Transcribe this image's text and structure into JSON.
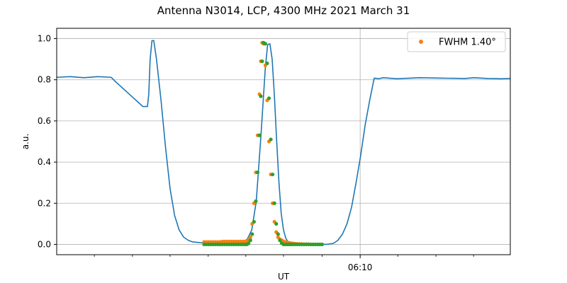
{
  "chart_data": {
    "type": "line",
    "title": "Antenna N3014, LCP, 4300 MHz 2021 March 31",
    "xlabel": "UT",
    "ylabel": "a.u.",
    "ylim": [
      -0.05,
      1.05
    ],
    "xlim": [
      0,
      100
    ],
    "y_ticks": [
      0.0,
      0.2,
      0.4,
      0.6,
      0.8,
      1.0
    ],
    "y_tick_labels": [
      "0.0",
      "0.2",
      "0.4",
      "0.6",
      "0.8",
      "1.0"
    ],
    "x_major_ticks": [
      {
        "x": 66.9,
        "label": "06:10"
      }
    ],
    "x_minor_ticks": [
      8.3,
      16.7,
      25.0,
      33.4,
      41.7,
      50.0,
      58.5,
      75.2,
      83.6,
      91.9
    ],
    "grid": true,
    "legend": {
      "position": "top-right",
      "entries": [
        "FWHM 1.40$^\\circ$"
      ]
    },
    "legend_display": "FWHM 1.40°",
    "colors": {
      "line": "#1f77b4",
      "fwhm": "#ff7f0e",
      "fit": "#2ca02c",
      "grid": "#b0b0b0"
    },
    "series": [
      {
        "kind": "line",
        "color": "#1f77b4",
        "x": [
          0,
          3,
          6,
          9,
          12,
          13,
          14,
          15,
          16,
          17,
          18,
          19,
          20,
          20.3,
          20.6,
          21,
          21.4,
          22,
          23,
          24,
          25,
          26,
          27,
          28,
          29,
          30,
          31,
          32,
          34,
          36,
          38,
          40,
          41,
          42,
          43,
          44,
          45,
          46,
          46.5,
          47,
          47.5,
          48,
          48.5,
          49,
          49.5,
          50,
          50.5,
          51,
          52,
          54,
          56,
          58,
          59.5,
          61,
          62,
          63,
          64,
          65,
          66,
          67,
          68,
          69,
          70,
          71,
          72,
          75,
          80,
          85,
          90,
          92,
          95,
          98,
          100
        ],
        "y": [
          0.812,
          0.815,
          0.81,
          0.815,
          0.812,
          0.79,
          0.77,
          0.75,
          0.73,
          0.71,
          0.69,
          0.67,
          0.67,
          0.73,
          0.9,
          0.99,
          0.99,
          0.9,
          0.7,
          0.47,
          0.27,
          0.14,
          0.07,
          0.035,
          0.02,
          0.012,
          0.01,
          0.008,
          0.005,
          0.003,
          0.002,
          0.004,
          0.01,
          0.025,
          0.07,
          0.21,
          0.52,
          0.86,
          0.97,
          0.975,
          0.9,
          0.72,
          0.5,
          0.3,
          0.15,
          0.07,
          0.03,
          0.012,
          0.005,
          0.003,
          0.002,
          0.002,
          0.0,
          0.005,
          0.02,
          0.05,
          0.1,
          0.18,
          0.3,
          0.43,
          0.58,
          0.7,
          0.808,
          0.805,
          0.81,
          0.805,
          0.81,
          0.808,
          0.806,
          0.81,
          0.806,
          0.805,
          0.806
        ]
      },
      {
        "kind": "scatter",
        "name": "FWHM 1.40°",
        "color": "#ff7f0e",
        "x": [
          32.5,
          33.0,
          33.5,
          34.0,
          34.5,
          35.0,
          35.5,
          36.0,
          36.5,
          37.0,
          37.5,
          38.0,
          38.5,
          39.0,
          39.5,
          40.0,
          40.5,
          41.0,
          41.5,
          41.9,
          42.3,
          42.7,
          43.1,
          43.5,
          43.9,
          44.3,
          44.7,
          45.0,
          45.3,
          45.6,
          46.0,
          46.4,
          46.8,
          47.2,
          47.6,
          48.0,
          48.4,
          48.8,
          49.2,
          49.6,
          50.0,
          50.4,
          50.8,
          51.2,
          51.6,
          52.0,
          52.5,
          53.0,
          53.5,
          54.0,
          54.5,
          55.0,
          55.5,
          56.0,
          56.5,
          57.0,
          57.5,
          58.0,
          58.5
        ],
        "y": [
          0.012,
          0.012,
          0.012,
          0.012,
          0.012,
          0.012,
          0.012,
          0.012,
          0.014,
          0.014,
          0.014,
          0.014,
          0.014,
          0.014,
          0.014,
          0.014,
          0.014,
          0.014,
          0.014,
          0.014,
          0.02,
          0.035,
          0.1,
          0.2,
          0.35,
          0.53,
          0.73,
          0.89,
          0.98,
          0.975,
          0.87,
          0.7,
          0.5,
          0.34,
          0.2,
          0.11,
          0.06,
          0.035,
          0.025,
          0.02,
          0.015,
          0.012,
          0.01,
          0.008,
          0.006,
          0.005,
          0.004,
          0.003,
          0.002,
          0.002,
          0.001,
          0.001,
          0.001,
          0.0,
          0.0,
          0.0,
          0.0,
          0.0,
          0.0
        ]
      },
      {
        "kind": "scatter",
        "color": "#2ca02c",
        "x": [
          32.5,
          33.0,
          33.5,
          34.0,
          34.5,
          35.0,
          35.5,
          36.0,
          36.5,
          37.0,
          37.5,
          38.0,
          38.5,
          39.0,
          39.5,
          40.0,
          40.5,
          41.0,
          41.5,
          41.9,
          42.3,
          42.7,
          43.1,
          43.5,
          43.9,
          44.3,
          44.7,
          45.0,
          45.3,
          45.6,
          46.0,
          46.4,
          46.8,
          47.2,
          47.6,
          48.0,
          48.4,
          48.8,
          49.2,
          49.6,
          50.0,
          50.4,
          50.8,
          51.2,
          51.6,
          52.0,
          52.5,
          53.0,
          53.5,
          54.0,
          54.5,
          55.0,
          55.5,
          56.0,
          56.5,
          57.0,
          57.5,
          58.0,
          58.5
        ],
        "y": [
          0.0,
          0.0,
          0.0,
          0.0,
          0.0,
          0.0,
          0.0,
          0.0,
          0.0,
          0.0,
          0.0,
          0.0,
          0.0,
          0.0,
          0.0,
          0.0,
          0.0,
          0.0,
          0.0,
          0.0,
          0.005,
          0.02,
          0.05,
          0.11,
          0.21,
          0.35,
          0.53,
          0.72,
          0.89,
          0.98,
          0.975,
          0.88,
          0.71,
          0.51,
          0.34,
          0.2,
          0.1,
          0.05,
          0.02,
          0.006,
          0.0,
          0.0,
          0.0,
          0.0,
          0.0,
          0.0,
          0.0,
          0.0,
          0.0,
          0.0,
          0.0,
          0.0,
          0.0,
          0.0,
          0.0,
          0.0,
          0.0,
          0.0,
          0.0
        ]
      }
    ]
  }
}
